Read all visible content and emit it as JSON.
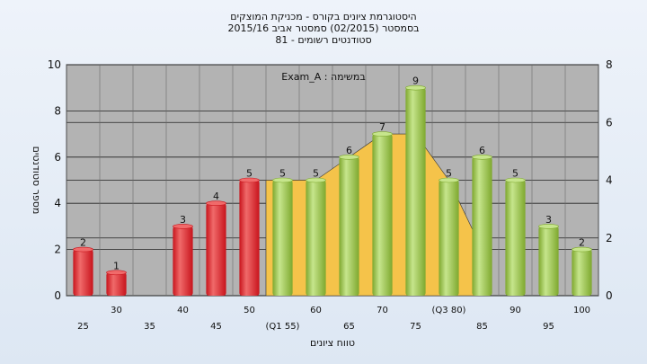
{
  "titles": [
    "היסטוגרמת ציונים בקורס - מכניקת המוצקים",
    "בסמסטר  (02/2015)  סמסטר אביב 2015/16",
    "סטודנטים רשומים - 81"
  ],
  "chart_data": {
    "type": "bar",
    "annotation": "Exam_A : במשימה",
    "xlabel": "טווח ציונים",
    "ylabel": "מספר סטודנטים",
    "ylim": [
      0,
      10
    ],
    "y2lim": [
      0,
      8
    ],
    "yticks": [
      0,
      2,
      4,
      6,
      8,
      10
    ],
    "y2ticks": [
      0,
      2,
      4,
      6,
      8
    ],
    "grid": true,
    "categories": [
      "25",
      "30",
      "35",
      "40",
      "45",
      "50",
      "55",
      "60",
      "65",
      "70",
      "75",
      "80",
      "85",
      "90",
      "95",
      "100"
    ],
    "tick_labels": [
      "25",
      "30",
      "35",
      "40",
      "45",
      "50",
      "(Q1 55)",
      "60",
      "65",
      "70",
      "75",
      "(Q3 80)",
      "85",
      "90",
      "95",
      "100"
    ],
    "values": [
      2,
      1,
      0,
      3,
      4,
      5,
      5,
      5,
      6,
      7,
      9,
      5,
      6,
      5,
      3,
      2
    ],
    "value_labels": [
      "2",
      "1",
      "",
      "3",
      "4",
      "5",
      "5",
      "5",
      "6",
      "7",
      "9",
      "5",
      "6",
      "5",
      "3",
      "2"
    ],
    "bar_colors": [
      "red",
      "red",
      "red",
      "red",
      "red",
      "red",
      "green",
      "green",
      "green",
      "green",
      "green",
      "green",
      "green",
      "green",
      "green",
      "green"
    ],
    "colors": {
      "red_light": "#f06a6a",
      "red_dark": "#c8141c",
      "green_light": "#c6e58c",
      "green_dark": "#7ea82e",
      "area": "#f5c34a",
      "plot_bg": "#b3b3b3"
    },
    "area_series": {
      "x": [
        "55",
        "60",
        "65",
        "70",
        "75",
        "80",
        "85"
      ],
      "values": [
        5,
        5,
        6,
        7,
        7,
        5,
        2
      ]
    }
  }
}
